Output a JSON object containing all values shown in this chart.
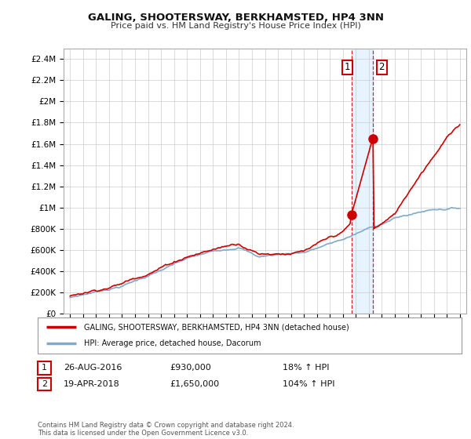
{
  "title": "GALING, SHOOTERSWAY, BERKHAMSTED, HP4 3NN",
  "subtitle": "Price paid vs. HM Land Registry's House Price Index (HPI)",
  "legend_line1": "GALING, SHOOTERSWAY, BERKHAMSTED, HP4 3NN (detached house)",
  "legend_line2": "HPI: Average price, detached house, Dacorum",
  "annotation1_value": 930000,
  "annotation1_year": 2016.65,
  "annotation2_value": 1650000,
  "annotation2_year": 2018.29,
  "ylim": [
    0,
    2500000
  ],
  "xlim_start": 1994.5,
  "xlim_end": 2025.5,
  "red_color": "#cc0000",
  "blue_color": "#7faacc",
  "shade_color": "#ddeeff",
  "background_color": "#ffffff",
  "grid_color": "#cccccc",
  "footer": "Contains HM Land Registry data © Crown copyright and database right 2024.\nThis data is licensed under the Open Government Licence v3.0.",
  "table_row1": [
    "1",
    "26-AUG-2016",
    "£930,000",
    "18% ↑ HPI"
  ],
  "table_row2": [
    "2",
    "19-APR-2018",
    "£1,650,000",
    "104% ↑ HPI"
  ],
  "yticks": [
    0,
    200000,
    400000,
    600000,
    800000,
    1000000,
    1200000,
    1400000,
    1600000,
    1800000,
    2000000,
    2200000,
    2400000
  ]
}
